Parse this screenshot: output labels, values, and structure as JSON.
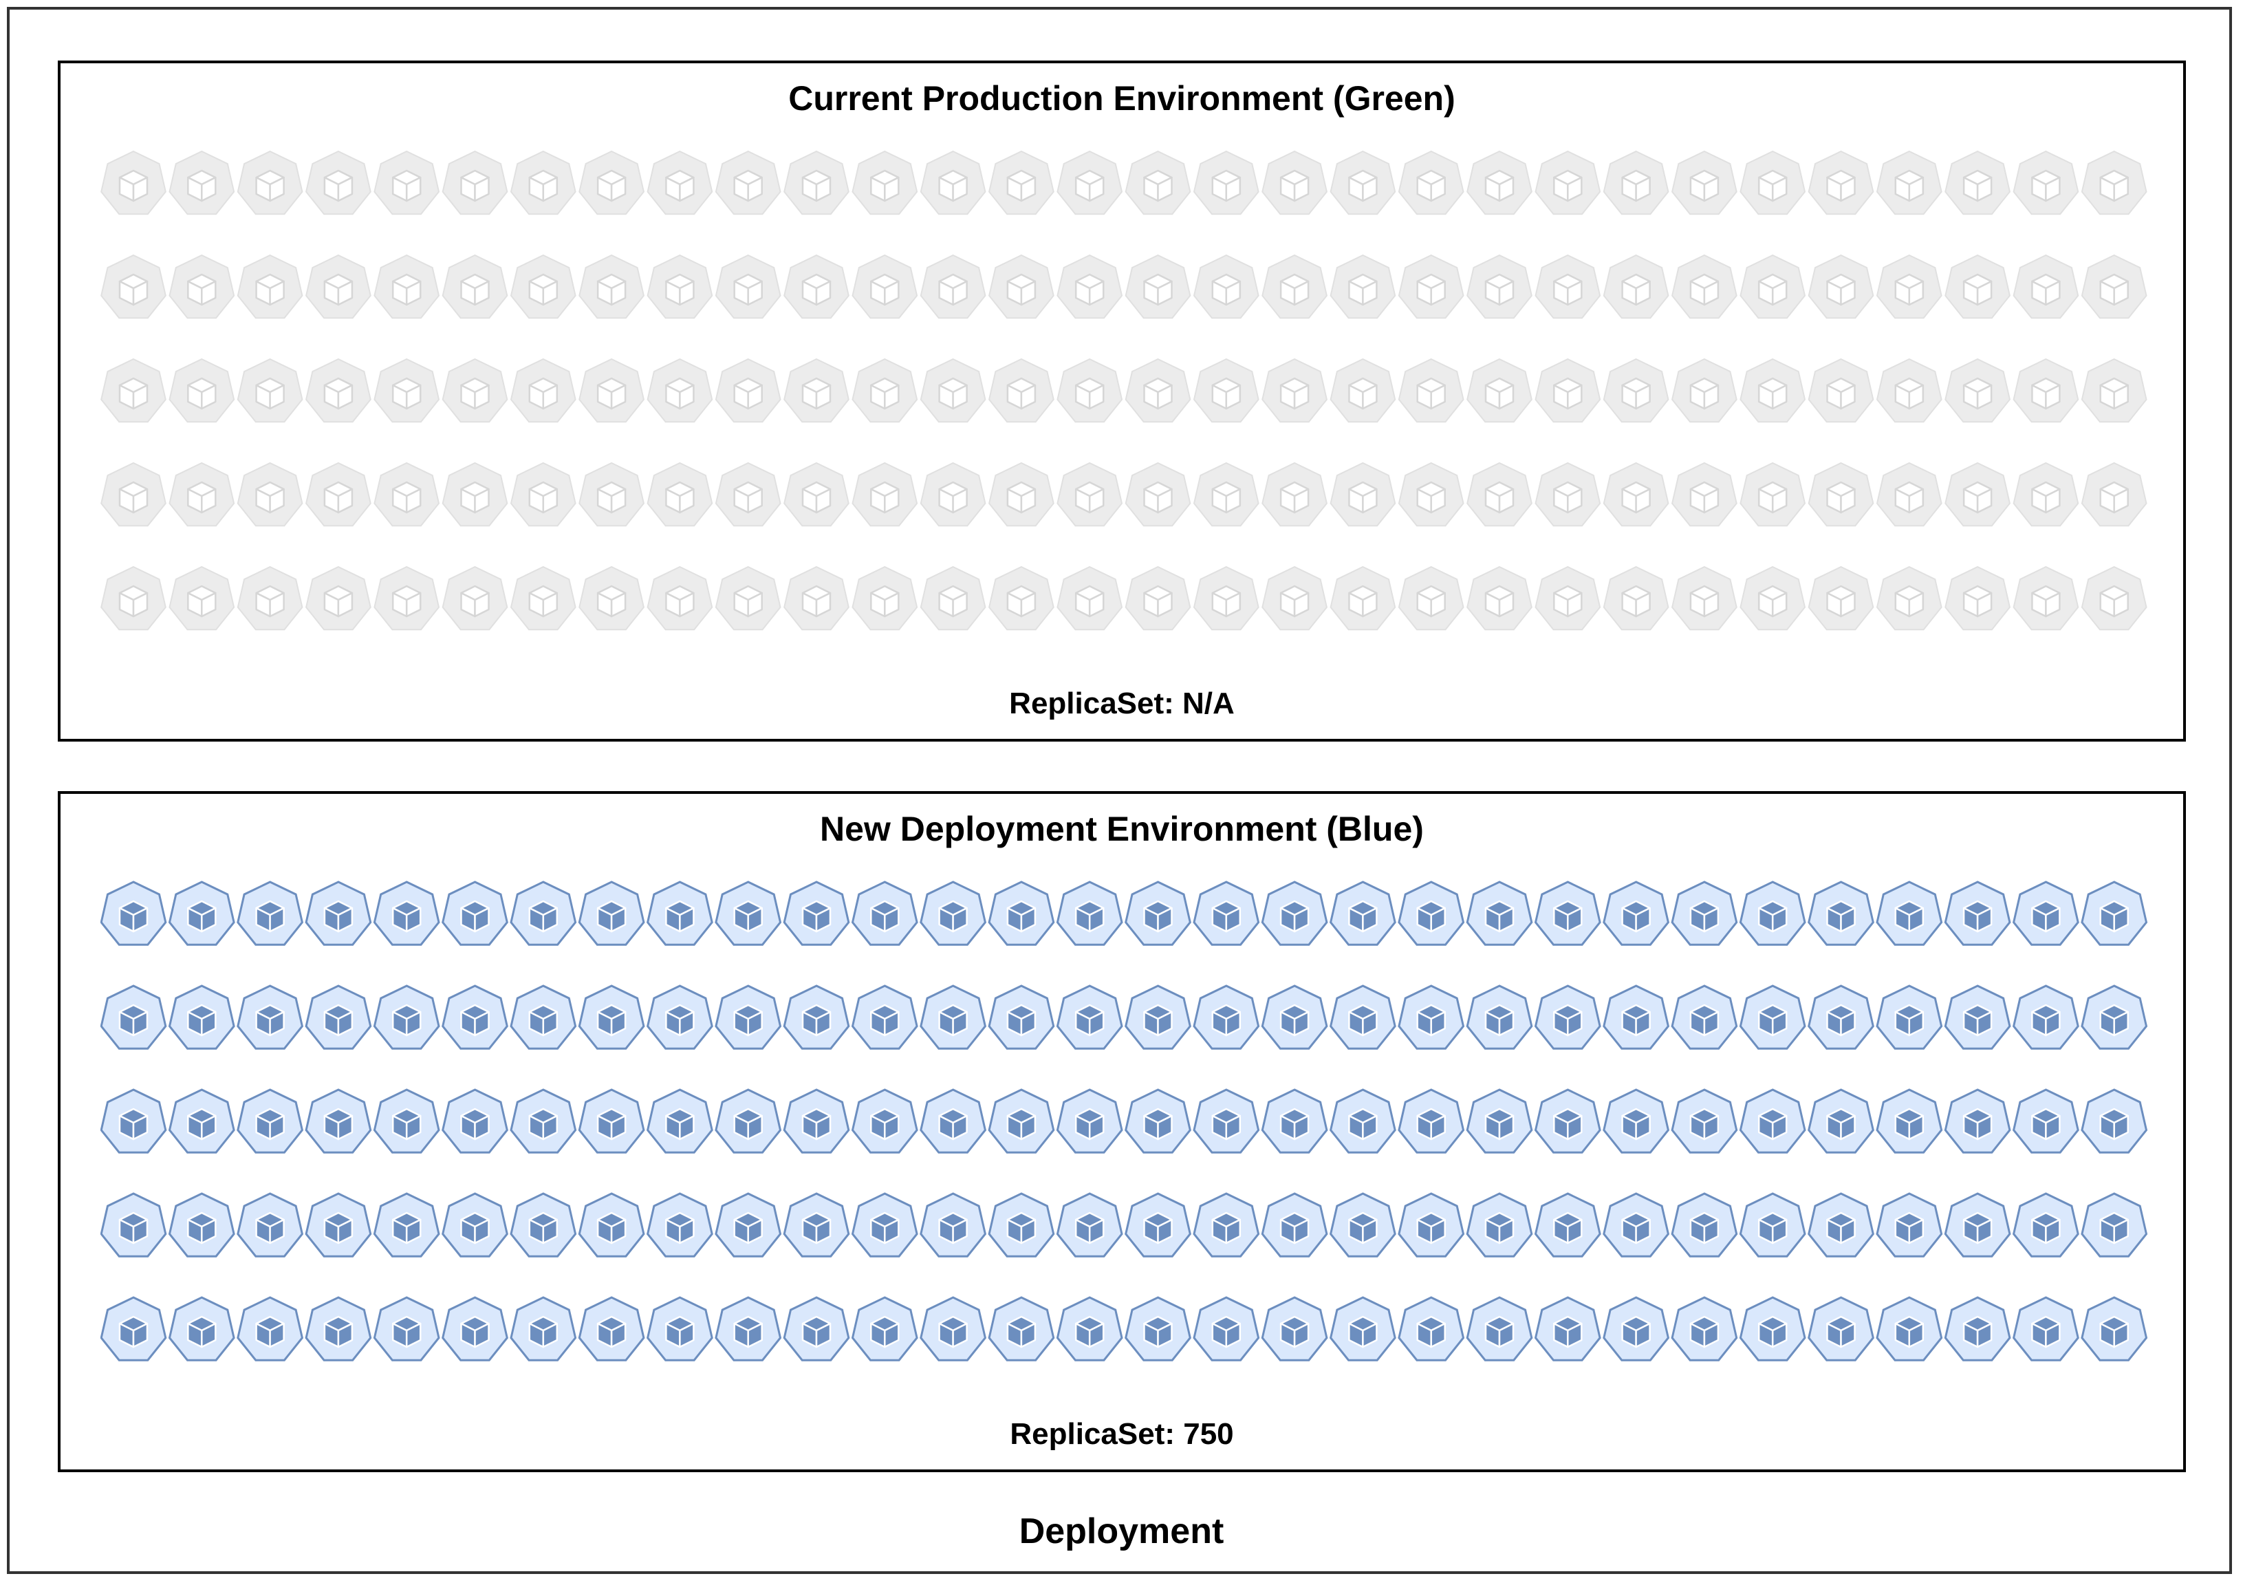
{
  "outer_label": "Deployment",
  "environments": [
    {
      "title": "Current Production Environment (Green)",
      "replicaset_label": "ReplicaSet: N/A",
      "pod_icon": "kubernetes-pod-icon",
      "pod_state": "inactive",
      "rows": 5,
      "columns": 30,
      "colors": {
        "fill": "#ececec",
        "stroke": "#e0e0e0",
        "cube": "#ffffff",
        "cube_stroke": "#d6d6d6"
      }
    },
    {
      "title": "New Deployment Environment (Blue)",
      "replicaset_label": "ReplicaSet: 750",
      "pod_icon": "kubernetes-pod-icon",
      "pod_state": "active",
      "rows": 5,
      "columns": 30,
      "colors": {
        "fill": "#dae8fc",
        "stroke": "#6c8ebf",
        "cube": "#6c8ebf",
        "cube_stroke": "#ffffff"
      }
    }
  ]
}
